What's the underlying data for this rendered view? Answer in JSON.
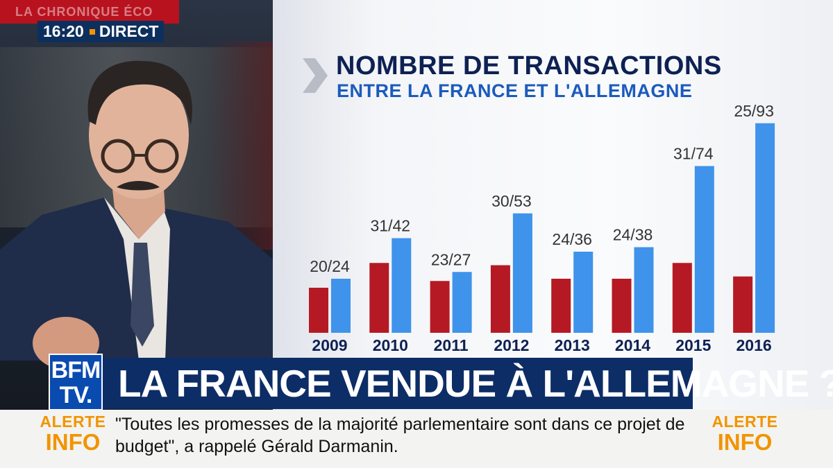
{
  "broadcast": {
    "show_label": "LA CHRONIQUE ÉCO",
    "clock": "16:20",
    "live_label": "DIRECT",
    "logo": {
      "line1": "BFM",
      "line2": "TV."
    },
    "headline": "LA FRANCE VENDUE À L'ALLEMAGNE ?",
    "alert": {
      "line1": "ALERTE",
      "line2": "INFO"
    },
    "ticker_text": "\"Toutes les promesses de la majorité parlementaire sont dans ce projet de budget\", a rappelé Gérald Darmanin.",
    "colors": {
      "brand_blue": "#0d2d66",
      "accent_orange": "#f29400",
      "bar_red": "#b51a24",
      "bar_blue": "#3f93ea"
    }
  },
  "chart_data": {
    "type": "bar",
    "title": "NOMBRE DE TRANSACTIONS",
    "subtitle": "ENTRE LA FRANCE ET L'ALLEMAGNE",
    "categories": [
      "2009",
      "2010",
      "2011",
      "2012",
      "2013",
      "2014",
      "2015",
      "2016"
    ],
    "series": [
      {
        "values": [
          20,
          31,
          23,
          30,
          24,
          24,
          31,
          25
        ],
        "color": "#b51a24"
      },
      {
        "values": [
          24,
          42,
          27,
          53,
          36,
          38,
          74,
          93
        ],
        "color": "#3f93ea"
      }
    ],
    "data_labels": [
      "20/24",
      "31/42",
      "23/27",
      "30/53",
      "24/36",
      "24/38",
      "31/74",
      "25/93"
    ],
    "ylim": [
      0,
      100
    ],
    "grid": false,
    "legend": "none"
  }
}
